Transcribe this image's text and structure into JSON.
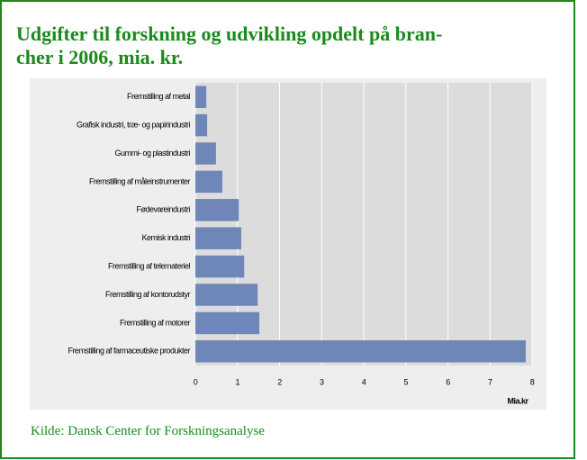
{
  "chart_data": {
    "type": "barh",
    "title": [
      "Udgifter til forskning og udvikling opdelt på bran-",
      "cher i 2006, mia. kr."
    ],
    "categories": [
      "Fremstilling af metal",
      "Grafisk industri, træ- og papirindustri",
      "Gummi- og plastindustri",
      "Fremstilling af måleinstrumenter",
      "Fødevareindustri",
      "Kemisk industri",
      "Fremstilling af telemateriel",
      "Fremstilling af kontorudstyr",
      "Fremstilling af motorer",
      "Fremstilling af farmaceutiske produkter"
    ],
    "values": [
      0.26,
      0.28,
      0.49,
      0.64,
      1.03,
      1.09,
      1.16,
      1.48,
      1.52,
      7.85
    ],
    "color": "#6f86b8",
    "xlim": [
      0,
      8
    ],
    "xticks": [
      0,
      1,
      2,
      3,
      4,
      5,
      6,
      7,
      8
    ],
    "grid": true,
    "x_label": "Mia.kr",
    "source": "Kilde: Dansk Center for Forskningsanalyse"
  }
}
